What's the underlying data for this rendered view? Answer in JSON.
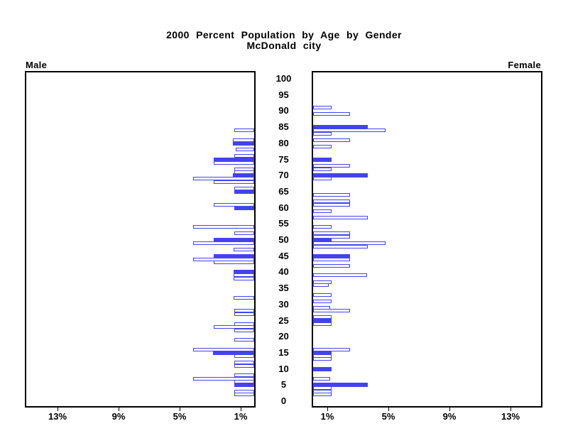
{
  "title": {
    "line1": "2000 Percent Population by Age by Gender",
    "line2": "McDonald city"
  },
  "panels": {
    "male_label": "Male",
    "female_label": "Female"
  },
  "chart_data": {
    "type": "bar",
    "variant": "population-pyramid",
    "title": "2000 Percent Population by Age by Gender",
    "subtitle": "McDonald city",
    "unit": "percent of population",
    "age_axis": {
      "min": 0,
      "max": 100,
      "tick_step": 5
    },
    "pct_axis": {
      "tick_values": [
        1,
        5,
        9,
        13
      ],
      "tick_labels": [
        "1%",
        "5%",
        "9%",
        "13%"
      ],
      "max_pct": 15.1,
      "male_direction": "right-to-left",
      "female_direction": "left-to-right"
    },
    "grid": "off",
    "highlight_rule": "bars at ages divisible by 5 drawn solid, others hollow outline",
    "colors": {
      "bar_outline": "#4343ee",
      "bar_solid_fill": "#4343ee",
      "bar_hollow_fill": "#ffffff",
      "frame": "#000000",
      "text": "#000000",
      "background": "#ffffff"
    },
    "male": [
      {
        "age": 84,
        "pct": 1.3,
        "solid": false
      },
      {
        "age": 81,
        "pct": 1.4,
        "solid": false
      },
      {
        "age": 80,
        "pct": 1.4,
        "solid": true
      },
      {
        "age": 78,
        "pct": 1.2,
        "solid": false
      },
      {
        "age": 76,
        "pct": 1.3,
        "solid": false
      },
      {
        "age": 75,
        "pct": 2.65,
        "solid": true
      },
      {
        "age": 74,
        "pct": 2.65,
        "solid": false
      },
      {
        "age": 72,
        "pct": 1.3,
        "solid": false
      },
      {
        "age": 71,
        "pct": 1.3,
        "solid": false
      },
      {
        "age": 70,
        "pct": 1.4,
        "solid": true
      },
      {
        "age": 69,
        "pct": 4.0,
        "solid": false
      },
      {
        "age": 68,
        "pct": 2.65,
        "solid": false
      },
      {
        "age": 66,
        "pct": 1.3,
        "solid": false
      },
      {
        "age": 65,
        "pct": 1.3,
        "solid": true
      },
      {
        "age": 61,
        "pct": 2.65,
        "solid": false
      },
      {
        "age": 60,
        "pct": 1.3,
        "solid": true
      },
      {
        "age": 54,
        "pct": 4.0,
        "solid": false
      },
      {
        "age": 52,
        "pct": 1.3,
        "solid": false
      },
      {
        "age": 50,
        "pct": 2.65,
        "solid": true
      },
      {
        "age": 49,
        "pct": 4.0,
        "solid": false
      },
      {
        "age": 47,
        "pct": 1.35,
        "solid": false
      },
      {
        "age": 45,
        "pct": 2.65,
        "solid": true
      },
      {
        "age": 44,
        "pct": 4.0,
        "solid": false
      },
      {
        "age": 43,
        "pct": 2.65,
        "solid": false
      },
      {
        "age": 40,
        "pct": 1.35,
        "solid": true
      },
      {
        "age": 39,
        "pct": 1.35,
        "solid": false
      },
      {
        "age": 38,
        "pct": 1.35,
        "solid": false
      },
      {
        "age": 32,
        "pct": 1.35,
        "solid": false
      },
      {
        "age": 28,
        "pct": 1.3,
        "solid": false
      },
      {
        "age": 27,
        "pct": 1.3,
        "solid": false
      },
      {
        "age": 24,
        "pct": 1.3,
        "solid": false
      },
      {
        "age": 23,
        "pct": 2.65,
        "solid": false
      },
      {
        "age": 22,
        "pct": 1.3,
        "solid": false
      },
      {
        "age": 19,
        "pct": 1.3,
        "solid": false
      },
      {
        "age": 16,
        "pct": 4.0,
        "solid": false
      },
      {
        "age": 15,
        "pct": 2.7,
        "solid": true
      },
      {
        "age": 14,
        "pct": 1.3,
        "solid": false
      },
      {
        "age": 12,
        "pct": 1.3,
        "solid": false
      },
      {
        "age": 11,
        "pct": 1.3,
        "solid": false
      },
      {
        "age": 8,
        "pct": 1.3,
        "solid": false
      },
      {
        "age": 7,
        "pct": 4.0,
        "solid": false
      },
      {
        "age": 6,
        "pct": 1.3,
        "solid": false
      },
      {
        "age": 5,
        "pct": 1.3,
        "solid": true
      },
      {
        "age": 3,
        "pct": 1.3,
        "solid": false
      },
      {
        "age": 2,
        "pct": 1.3,
        "solid": false
      }
    ],
    "female": [
      {
        "age": 91,
        "pct": 1.2,
        "solid": false
      },
      {
        "age": 89,
        "pct": 2.4,
        "solid": false
      },
      {
        "age": 85,
        "pct": 3.6,
        "solid": true
      },
      {
        "age": 84,
        "pct": 4.75,
        "solid": false
      },
      {
        "age": 83,
        "pct": 1.2,
        "solid": false
      },
      {
        "age": 81,
        "pct": 2.4,
        "solid": false
      },
      {
        "age": 79,
        "pct": 1.2,
        "solid": false
      },
      {
        "age": 75,
        "pct": 1.2,
        "solid": true
      },
      {
        "age": 73,
        "pct": 2.4,
        "solid": false
      },
      {
        "age": 72,
        "pct": 1.2,
        "solid": false
      },
      {
        "age": 70,
        "pct": 3.6,
        "solid": true
      },
      {
        "age": 69,
        "pct": 1.2,
        "solid": false
      },
      {
        "age": 64,
        "pct": 2.4,
        "solid": false
      },
      {
        "age": 62,
        "pct": 2.4,
        "solid": false
      },
      {
        "age": 61,
        "pct": 2.4,
        "solid": false
      },
      {
        "age": 59,
        "pct": 1.2,
        "solid": false
      },
      {
        "age": 57,
        "pct": 3.6,
        "solid": false
      },
      {
        "age": 54,
        "pct": 1.2,
        "solid": false
      },
      {
        "age": 52,
        "pct": 2.4,
        "solid": false
      },
      {
        "age": 51,
        "pct": 2.4,
        "solid": false
      },
      {
        "age": 50,
        "pct": 1.2,
        "solid": true
      },
      {
        "age": 49,
        "pct": 4.75,
        "solid": false
      },
      {
        "age": 48,
        "pct": 3.6,
        "solid": false
      },
      {
        "age": 45,
        "pct": 2.4,
        "solid": true
      },
      {
        "age": 44,
        "pct": 2.4,
        "solid": false
      },
      {
        "age": 42,
        "pct": 2.4,
        "solid": false
      },
      {
        "age": 39,
        "pct": 3.55,
        "solid": false
      },
      {
        "age": 37,
        "pct": 1.2,
        "solid": false
      },
      {
        "age": 36,
        "pct": 1.0,
        "solid": false
      },
      {
        "age": 33,
        "pct": 1.2,
        "solid": false
      },
      {
        "age": 31,
        "pct": 1.2,
        "solid": false
      },
      {
        "age": 29,
        "pct": 1.1,
        "solid": false
      },
      {
        "age": 28,
        "pct": 2.4,
        "solid": false
      },
      {
        "age": 26,
        "pct": 1.2,
        "solid": false
      },
      {
        "age": 25,
        "pct": 1.2,
        "solid": true
      },
      {
        "age": 24,
        "pct": 1.2,
        "solid": false
      },
      {
        "age": 16,
        "pct": 2.4,
        "solid": false
      },
      {
        "age": 15,
        "pct": 1.2,
        "solid": true
      },
      {
        "age": 14,
        "pct": 1.2,
        "solid": false
      },
      {
        "age": 13,
        "pct": 1.2,
        "solid": false
      },
      {
        "age": 10,
        "pct": 1.2,
        "solid": true
      },
      {
        "age": 7,
        "pct": 1.1,
        "solid": false
      },
      {
        "age": 5,
        "pct": 3.6,
        "solid": true
      },
      {
        "age": 4,
        "pct": 1.2,
        "solid": false
      },
      {
        "age": 3,
        "pct": 1.2,
        "solid": false
      },
      {
        "age": 2,
        "pct": 1.2,
        "solid": false
      }
    ]
  }
}
